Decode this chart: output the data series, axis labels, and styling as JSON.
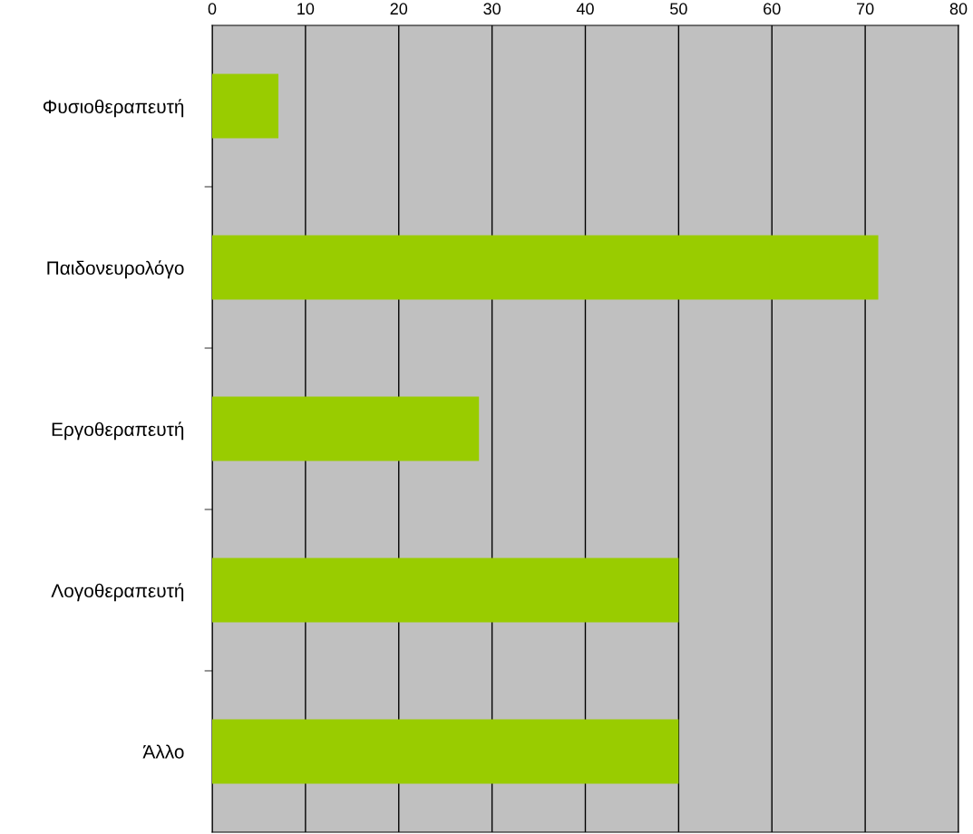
{
  "chart_data": {
    "type": "bar",
    "orientation": "horizontal",
    "categories": [
      "Φυσιοθεραπευτή",
      "Παιδονευρολόγο",
      "Εργοθεραπευτή",
      "Λογοθεραπευτή",
      "Άλλο"
    ],
    "values": [
      7.1,
      71.4,
      28.6,
      50,
      50
    ],
    "color": "#99cc00",
    "xlim": [
      0,
      80
    ],
    "xticks": [
      0,
      10,
      20,
      30,
      40,
      50,
      60,
      70,
      80
    ],
    "grid": "x"
  }
}
